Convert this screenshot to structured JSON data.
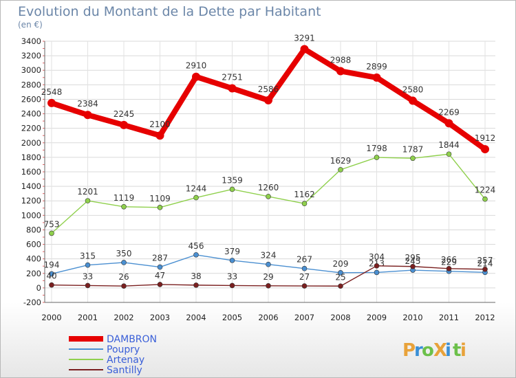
{
  "chart_data": {
    "type": "line",
    "title": "Evolution du Montant de la Dette par Habitant",
    "subtitle": "(en €)",
    "xlabel": "",
    "ylabel": "",
    "categories": [
      "2000",
      "2001",
      "2002",
      "2003",
      "2004",
      "2005",
      "2006",
      "2007",
      "2008",
      "2009",
      "2010",
      "2011",
      "2012"
    ],
    "ylim": [
      -200,
      3400
    ],
    "yticks": [
      -200,
      0,
      200,
      400,
      600,
      800,
      1000,
      1200,
      1400,
      1600,
      1800,
      2000,
      2200,
      2400,
      2600,
      2800,
      3000,
      3200,
      3400
    ],
    "grid": true,
    "legend_position": "bottom-left",
    "series": [
      {
        "name": "DAMBRON",
        "color": "#e60000",
        "values": [
          2548,
          2384,
          2245,
          2100,
          2910,
          2751,
          2586,
          3291,
          2988,
          2899,
          2580,
          2269,
          1912
        ],
        "labels": [
          "2548",
          "2384",
          "2245",
          "2100",
          "2910",
          "2751",
          "2586",
          "3291",
          "2988",
          "2899",
          "2580",
          "2269",
          "1912"
        ]
      },
      {
        "name": "Poupry",
        "color": "#4a8fd1",
        "values": [
          194,
          315,
          350,
          287,
          456,
          379,
          324,
          267,
          209,
          213,
          245,
          229,
          214
        ],
        "labels": [
          "194",
          "315",
          "350",
          "287",
          "456",
          "379",
          "324",
          "267",
          "209",
          "213",
          "245",
          "229",
          "214"
        ]
      },
      {
        "name": "Artenay",
        "color": "#8fd04c",
        "values": [
          753,
          1201,
          1119,
          1109,
          1244,
          1359,
          1260,
          1162,
          1629,
          1798,
          1787,
          1844,
          1224
        ],
        "labels": [
          "753",
          "1201",
          "1119",
          "1109",
          "1244",
          "1359",
          "1260",
          "1162",
          "1629",
          "1798",
          "1787",
          "1844",
          "1224"
        ]
      },
      {
        "name": "Santilly",
        "color": "#7a1f1f",
        "values": [
          40,
          33,
          26,
          47,
          38,
          33,
          29,
          27,
          25,
          304,
          295,
          266,
          257
        ],
        "labels": [
          "40",
          "33",
          "26",
          "47",
          "38",
          "33",
          "29",
          "27",
          "25",
          "304",
          "295",
          "266",
          "257"
        ]
      }
    ]
  },
  "brand": {
    "text": "ProXiti",
    "letters": [
      "P",
      "r",
      "o",
      "X",
      "i",
      "t",
      "i"
    ],
    "colors": [
      "#e8a23a",
      "#3a8fd6",
      "#6cc04a",
      "#e8a23a",
      "#3a8fd6",
      "#6cc04a",
      "#e8a23a"
    ]
  }
}
